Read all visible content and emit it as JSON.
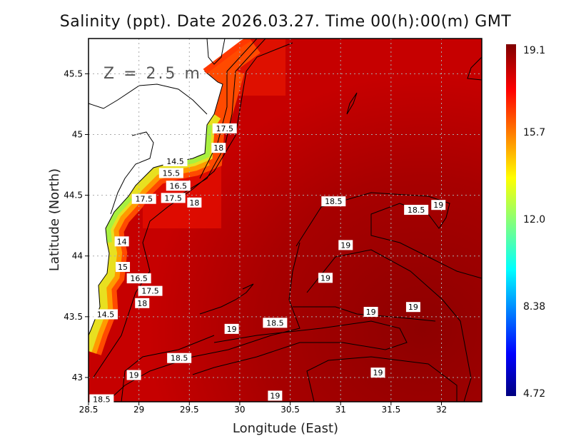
{
  "title": "Salinity (ppt). Date 2026.03.27. Time 00(h):00(m) GMT",
  "depth_label": "Z = 2.5 m",
  "x_axis": {
    "label": "Longitude (East)",
    "ticks": [
      "28.5",
      "29",
      "29.5",
      "30",
      "30.5",
      "31",
      "31.5",
      "32"
    ],
    "range": [
      28.5,
      32.4
    ]
  },
  "y_axis": {
    "label": "Latitude (North)",
    "ticks": [
      "43",
      "43.5",
      "44",
      "44.5",
      "45",
      "45.5"
    ],
    "range": [
      42.8,
      45.79
    ]
  },
  "colorbar": {
    "labels": [
      "19.1",
      "15.7",
      "12.0",
      "8.38",
      "4.72"
    ],
    "min": 4.72,
    "max": 19.1,
    "colormap": "jet"
  },
  "colors": {
    "sea_main": "#c40000",
    "sea_deep": "#9a0000",
    "land": "#ffffff"
  },
  "contour_labels": [
    {
      "text": "17.5",
      "lon": 29.85,
      "lat": 45.05
    },
    {
      "text": "18",
      "lon": 29.79,
      "lat": 44.89
    },
    {
      "text": "14.5",
      "lon": 29.36,
      "lat": 44.78
    },
    {
      "text": "15.5",
      "lon": 29.32,
      "lat": 44.73
    },
    {
      "text": "16.5",
      "lon": 29.39,
      "lat": 44.59
    },
    {
      "text": "17.5",
      "lon": 29.34,
      "lat": 44.56
    },
    {
      "text": "17.5",
      "lon": 29.05,
      "lat": 44.47
    },
    {
      "text": "18",
      "lon": 29.55,
      "lat": 44.44
    },
    {
      "text": "18.5",
      "lon": 30.93,
      "lat": 44.45
    },
    {
      "text": "18.5",
      "lon": 31.75,
      "lat": 44.38
    },
    {
      "text": "19",
      "lon": 31.97,
      "lat": 44.42
    },
    {
      "text": "14",
      "lon": 28.83,
      "lat": 44.12
    },
    {
      "text": "19",
      "lon": 31.05,
      "lat": 44.09
    },
    {
      "text": "15",
      "lon": 28.84,
      "lat": 43.91
    },
    {
      "text": "16.5",
      "lon": 29.0,
      "lat": 43.91
    },
    {
      "text": "17.5",
      "lon": 29.07,
      "lat": 43.83
    },
    {
      "text": "18",
      "lon": 28.99,
      "lat": 43.8
    },
    {
      "text": "19",
      "lon": 30.85,
      "lat": 43.82
    },
    {
      "text": "14.5",
      "lon": 28.67,
      "lat": 43.52
    },
    {
      "text": "19",
      "lon": 31.3,
      "lat": 43.54
    },
    {
      "text": "19",
      "lon": 31.72,
      "lat": 43.58
    },
    {
      "text": "18.5",
      "lon": 30.35,
      "lat": 43.45
    },
    {
      "text": "19",
      "lon": 29.92,
      "lat": 43.4
    },
    {
      "text": "18.5",
      "lon": 29.4,
      "lat": 43.16
    },
    {
      "text": "19",
      "lon": 28.95,
      "lat": 43.02
    },
    {
      "text": "19",
      "lon": 31.37,
      "lat": 43.04
    },
    {
      "text": "19",
      "lon": 30.35,
      "lat": 42.85
    },
    {
      "text": "18.5",
      "lon": 28.63,
      "lat": 42.82
    }
  ]
}
